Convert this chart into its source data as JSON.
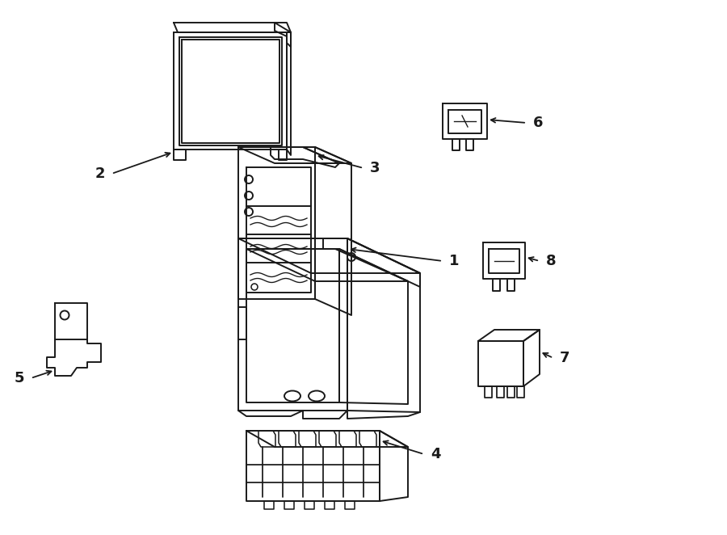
{
  "bg_color": "#ffffff",
  "line_color": "#1a1a1a",
  "line_width": 1.4,
  "label_fontsize": 13,
  "label_fontweight": "bold",
  "figsize": [
    9.0,
    6.62
  ],
  "dpi": 100,
  "xlim": [
    0,
    900
  ],
  "ylim": [
    0,
    662
  ]
}
